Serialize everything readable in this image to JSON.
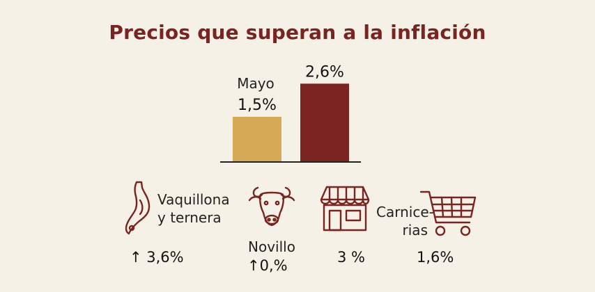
{
  "title": "Precios que superan a la inflación",
  "colors": {
    "title": "#7a2421",
    "bar_may": "#d6aa57",
    "bar_other": "#7b2420",
    "icon": "#7a2421",
    "background": "#f5f1e6"
  },
  "chart_data": {
    "type": "bar",
    "title": "Precios que superan a la inflación",
    "categories": [
      "Mayo",
      ""
    ],
    "values": [
      1.5,
      2.6
    ],
    "value_labels": [
      "1,5%",
      "2,6%"
    ],
    "category_label": "Mayo",
    "ylim": [
      0,
      3
    ],
    "unit": "%",
    "grid": false,
    "legend": "none"
  },
  "items": [
    {
      "label_lines": [
        "Vaquillona",
        "y ternera"
      ],
      "value": "↑ 3,6%",
      "icon": "meat-cut-icon"
    },
    {
      "label_lines": [
        "Novillo"
      ],
      "value": "↑0,%",
      "icon": "cow-head-icon"
    },
    {
      "label_lines": [],
      "value": "3 %",
      "icon": "store-icon"
    },
    {
      "label_lines": [
        "Carnice-",
        "rias"
      ],
      "value": "1,6%",
      "icon": "shopping-cart-icon"
    }
  ]
}
